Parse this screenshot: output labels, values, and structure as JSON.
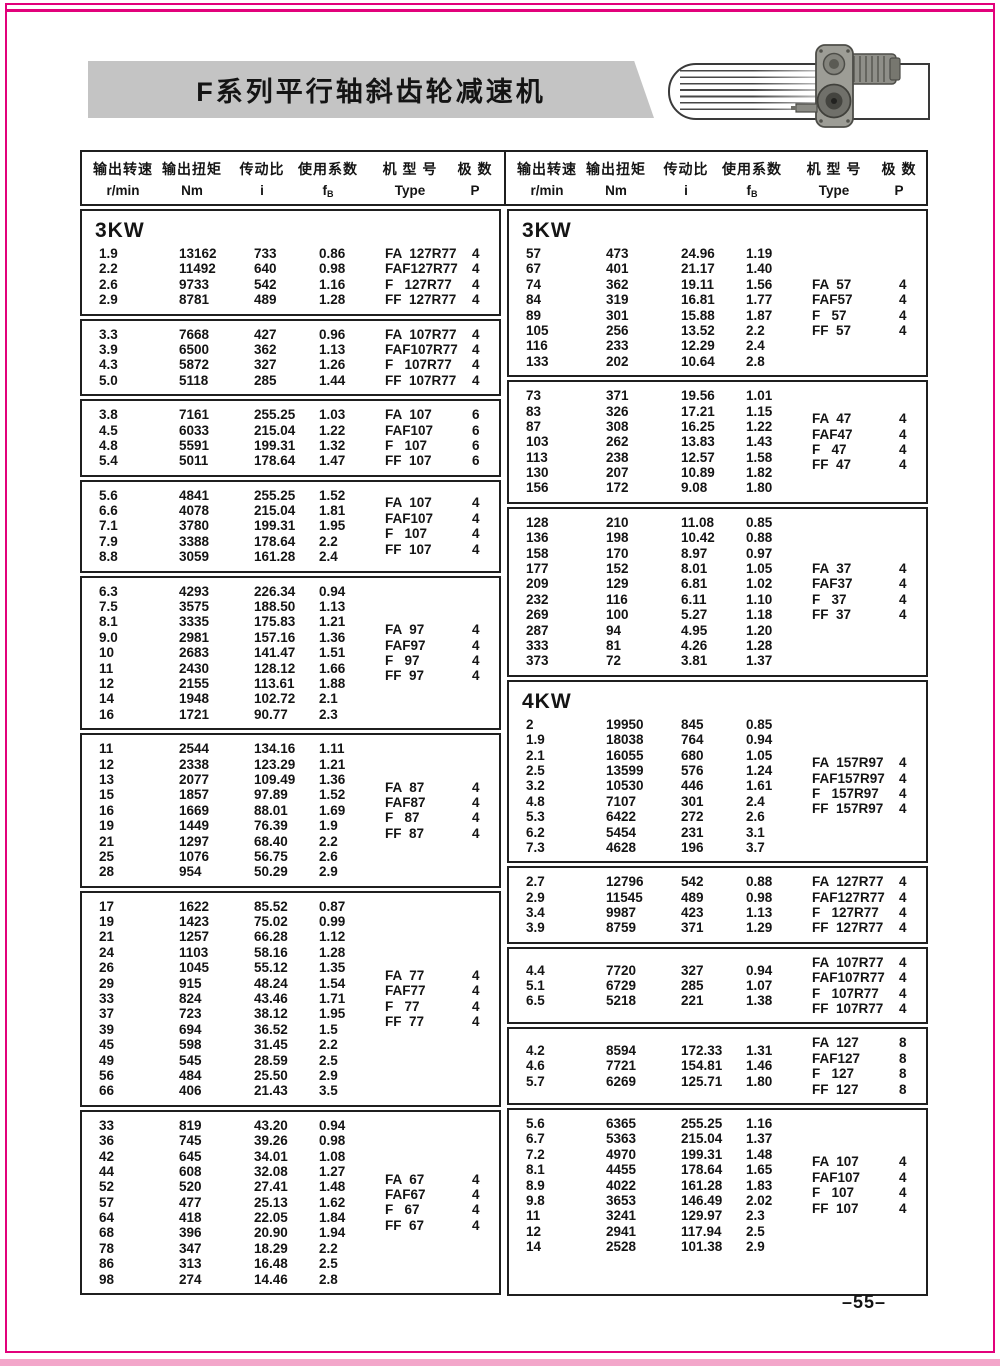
{
  "page": {
    "title": "F系列平行轴斜齿轮减速机",
    "page_number": "–55–"
  },
  "icons": {
    "header_photo": "gear-reducer-photo",
    "header_decoration": "speed-lines"
  },
  "header_cols": [
    {
      "cn": "输出转速",
      "unit": "r/min"
    },
    {
      "cn": "输出扭矩",
      "unit": "Nm"
    },
    {
      "cn": "传动比",
      "unit": "i"
    },
    {
      "cn": "使用系数",
      "unit": "fB"
    },
    {
      "cn": "机 型 号",
      "unit": "Type"
    },
    {
      "cn": "极  数",
      "unit": "P"
    }
  ],
  "tables": [
    {
      "blocks": [
        {
          "power": "3KW",
          "rows": [
            [
              "1.9",
              "13162",
              "733",
              "0.86"
            ],
            [
              "2.2",
              "11492",
              "640",
              "0.98"
            ],
            [
              "2.6",
              "9733",
              "542",
              "1.16"
            ],
            [
              "2.9",
              "8781",
              "489",
              "1.28"
            ]
          ],
          "types": [
            [
              "FA  127R77",
              "4"
            ],
            [
              "FAF127R77",
              "4"
            ],
            [
              "F   127R77",
              "4"
            ],
            [
              "FF  127R77",
              "4"
            ]
          ]
        },
        {
          "rows": [
            [
              "3.3",
              "7668",
              "427",
              "0.96"
            ],
            [
              "3.9",
              "6500",
              "362",
              "1.13"
            ],
            [
              "4.3",
              "5872",
              "327",
              "1.26"
            ],
            [
              "5.0",
              "5118",
              "285",
              "1.44"
            ]
          ],
          "types": [
            [
              "FA  107R77",
              "4"
            ],
            [
              "FAF107R77",
              "4"
            ],
            [
              "F   107R77",
              "4"
            ],
            [
              "FF  107R77",
              "4"
            ]
          ]
        },
        {
          "rows": [
            [
              "3.8",
              "7161",
              "255.25",
              "1.03"
            ],
            [
              "4.5",
              "6033",
              "215.04",
              "1.22"
            ],
            [
              "4.8",
              "5591",
              "199.31",
              "1.32"
            ],
            [
              "5.4",
              "5011",
              "178.64",
              "1.47"
            ]
          ],
          "types": [
            [
              "FA  107",
              "6"
            ],
            [
              "FAF107",
              "6"
            ],
            [
              "F   107",
              "6"
            ],
            [
              "FF  107",
              "6"
            ]
          ]
        },
        {
          "rows": [
            [
              "5.6",
              "4841",
              "255.25",
              "1.52"
            ],
            [
              "6.6",
              "4078",
              "215.04",
              "1.81"
            ],
            [
              "7.1",
              "3780",
              "199.31",
              "1.95"
            ],
            [
              "7.9",
              "3388",
              "178.64",
              "2.2"
            ],
            [
              "8.8",
              "3059",
              "161.28",
              "2.4"
            ]
          ],
          "types": [
            [
              "FA  107",
              "4"
            ],
            [
              "FAF107",
              "4"
            ],
            [
              "F   107",
              "4"
            ],
            [
              "FF  107",
              "4"
            ]
          ]
        },
        {
          "rows": [
            [
              "6.3",
              "4293",
              "226.34",
              "0.94"
            ],
            [
              "7.5",
              "3575",
              "188.50",
              "1.13"
            ],
            [
              "8.1",
              "3335",
              "175.83",
              "1.21"
            ],
            [
              "9.0",
              "2981",
              "157.16",
              "1.36"
            ],
            [
              "10",
              "2683",
              "141.47",
              "1.51"
            ],
            [
              "11",
              "2430",
              "128.12",
              "1.66"
            ],
            [
              "12",
              "2155",
              "113.61",
              "1.88"
            ],
            [
              "14",
              "1948",
              "102.72",
              "2.1"
            ],
            [
              "16",
              "1721",
              "90.77",
              "2.3"
            ]
          ],
          "types": [
            [
              "FA  97",
              "4"
            ],
            [
              "FAF97",
              "4"
            ],
            [
              "F   97",
              "4"
            ],
            [
              "FF  97",
              "4"
            ]
          ]
        },
        {
          "rows": [
            [
              "11",
              "2544",
              "134.16",
              "1.11"
            ],
            [
              "12",
              "2338",
              "123.29",
              "1.21"
            ],
            [
              "13",
              "2077",
              "109.49",
              "1.36"
            ],
            [
              "15",
              "1857",
              "97.89",
              "1.52"
            ],
            [
              "16",
              "1669",
              "88.01",
              "1.69"
            ],
            [
              "19",
              "1449",
              "76.39",
              "1.9"
            ],
            [
              "21",
              "1297",
              "68.40",
              "2.2"
            ],
            [
              "25",
              "1076",
              "56.75",
              "2.6"
            ],
            [
              "28",
              "954",
              "50.29",
              "2.9"
            ]
          ],
          "types": [
            [
              "FA  87",
              "4"
            ],
            [
              "FAF87",
              "4"
            ],
            [
              "F   87",
              "4"
            ],
            [
              "FF  87",
              "4"
            ]
          ]
        },
        {
          "rows": [
            [
              "17",
              "1622",
              "85.52",
              "0.87"
            ],
            [
              "19",
              "1423",
              "75.02",
              "0.99"
            ],
            [
              "21",
              "1257",
              "66.28",
              "1.12"
            ],
            [
              "24",
              "1103",
              "58.16",
              "1.28"
            ],
            [
              "26",
              "1045",
              "55.12",
              "1.35"
            ],
            [
              "29",
              "915",
              "48.24",
              "1.54"
            ],
            [
              "33",
              "824",
              "43.46",
              "1.71"
            ],
            [
              "37",
              "723",
              "38.12",
              "1.95"
            ],
            [
              "39",
              "694",
              "36.52",
              "1.5"
            ],
            [
              "45",
              "598",
              "31.45",
              "2.2"
            ],
            [
              "49",
              "545",
              "28.59",
              "2.5"
            ],
            [
              "56",
              "484",
              "25.50",
              "2.9"
            ],
            [
              "66",
              "406",
              "21.43",
              "3.5"
            ]
          ],
          "types": [
            [
              "FA  77",
              "4"
            ],
            [
              "FAF77",
              "4"
            ],
            [
              "F   77",
              "4"
            ],
            [
              "FF  77",
              "4"
            ]
          ]
        },
        {
          "rows": [
            [
              "33",
              "819",
              "43.20",
              "0.94"
            ],
            [
              "36",
              "745",
              "39.26",
              "0.98"
            ],
            [
              "42",
              "645",
              "34.01",
              "1.08"
            ],
            [
              "44",
              "608",
              "32.08",
              "1.27"
            ],
            [
              "52",
              "520",
              "27.41",
              "1.48"
            ],
            [
              "57",
              "477",
              "25.13",
              "1.62"
            ],
            [
              "64",
              "418",
              "22.05",
              "1.84"
            ],
            [
              "68",
              "396",
              "20.90",
              "1.94"
            ],
            [
              "78",
              "347",
              "18.29",
              "2.2"
            ],
            [
              "86",
              "313",
              "16.48",
              "2.5"
            ],
            [
              "98",
              "274",
              "14.46",
              "2.8"
            ]
          ],
          "types": [
            [
              "FA  67",
              "4"
            ],
            [
              "FAF67",
              "4"
            ],
            [
              "F   67",
              "4"
            ],
            [
              "FF  67",
              "4"
            ]
          ]
        }
      ]
    },
    {
      "blocks": [
        {
          "power": "3KW",
          "rows": [
            [
              "57",
              "473",
              "24.96",
              "1.19"
            ],
            [
              "67",
              "401",
              "21.17",
              "1.40"
            ],
            [
              "74",
              "362",
              "19.11",
              "1.56"
            ],
            [
              "84",
              "319",
              "16.81",
              "1.77"
            ],
            [
              "89",
              "301",
              "15.88",
              "1.87"
            ],
            [
              "105",
              "256",
              "13.52",
              "2.2"
            ],
            [
              "116",
              "233",
              "12.29",
              "2.4"
            ],
            [
              "133",
              "202",
              "10.64",
              "2.8"
            ]
          ],
          "types": [
            [
              "FA  57",
              "4"
            ],
            [
              "FAF57",
              "4"
            ],
            [
              "F   57",
              "4"
            ],
            [
              "FF  57",
              "4"
            ]
          ]
        },
        {
          "rows": [
            [
              "73",
              "371",
              "19.56",
              "1.01"
            ],
            [
              "83",
              "326",
              "17.21",
              "1.15"
            ],
            [
              "87",
              "308",
              "16.25",
              "1.22"
            ],
            [
              "103",
              "262",
              "13.83",
              "1.43"
            ],
            [
              "113",
              "238",
              "12.57",
              "1.58"
            ],
            [
              "130",
              "207",
              "10.89",
              "1.82"
            ],
            [
              "156",
              "172",
              "9.08",
              "1.80"
            ]
          ],
          "types": [
            [
              "FA  47",
              "4"
            ],
            [
              "FAF47",
              "4"
            ],
            [
              "F   47",
              "4"
            ],
            [
              "FF  47",
              "4"
            ]
          ]
        },
        {
          "rows": [
            [
              "128",
              "210",
              "11.08",
              "0.85"
            ],
            [
              "136",
              "198",
              "10.42",
              "0.88"
            ],
            [
              "158",
              "170",
              "8.97",
              "0.97"
            ],
            [
              "177",
              "152",
              "8.01",
              "1.05"
            ],
            [
              "209",
              "129",
              "6.81",
              "1.02"
            ],
            [
              "232",
              "116",
              "6.11",
              "1.10"
            ],
            [
              "269",
              "100",
              "5.27",
              "1.18"
            ],
            [
              "287",
              "94",
              "4.95",
              "1.20"
            ],
            [
              "333",
              "81",
              "4.26",
              "1.28"
            ],
            [
              "373",
              "72",
              "3.81",
              "1.37"
            ]
          ],
          "types": [
            [
              "FA  37",
              "4"
            ],
            [
              "FAF37",
              "4"
            ],
            [
              "F   37",
              "4"
            ],
            [
              "FF  37",
              "4"
            ]
          ]
        },
        {
          "power": "4KW",
          "rows": [
            [
              "2",
              "19950",
              "845",
              "0.85"
            ],
            [
              "1.9",
              "18038",
              "764",
              "0.94"
            ],
            [
              "2.1",
              "16055",
              "680",
              "1.05"
            ],
            [
              "2.5",
              "13599",
              "576",
              "1.24"
            ],
            [
              "3.2",
              "10530",
              "446",
              "1.61"
            ],
            [
              "4.8",
              "7107",
              "301",
              "2.4"
            ],
            [
              "5.3",
              "6422",
              "272",
              "2.6"
            ],
            [
              "6.2",
              "5454",
              "231",
              "3.1"
            ],
            [
              "7.3",
              "4628",
              "196",
              "3.7"
            ]
          ],
          "types": [
            [
              "FA  157R97",
              "4"
            ],
            [
              "FAF157R97",
              "4"
            ],
            [
              "F   157R97",
              "4"
            ],
            [
              "FF  157R97",
              "4"
            ]
          ]
        },
        {
          "rows": [
            [
              "2.7",
              "12796",
              "542",
              "0.88"
            ],
            [
              "2.9",
              "11545",
              "489",
              "0.98"
            ],
            [
              "3.4",
              "9987",
              "423",
              "1.13"
            ],
            [
              "3.9",
              "8759",
              "371",
              "1.29"
            ]
          ],
          "types": [
            [
              "FA  127R77",
              "4"
            ],
            [
              "FAF127R77",
              "4"
            ],
            [
              "F   127R77",
              "4"
            ],
            [
              "FF  127R77",
              "4"
            ]
          ]
        },
        {
          "rows": [
            [
              "4.4",
              "7720",
              "327",
              "0.94"
            ],
            [
              "5.1",
              "6729",
              "285",
              "1.07"
            ],
            [
              "6.5",
              "5218",
              "221",
              "1.38"
            ]
          ],
          "types": [
            [
              "FA  107R77",
              "4"
            ],
            [
              "FAF107R77",
              "4"
            ],
            [
              "F   107R77",
              "4"
            ],
            [
              "FF  107R77",
              "4"
            ]
          ]
        },
        {
          "rows": [
            [
              "4.2",
              "8594",
              "172.33",
              "1.31"
            ],
            [
              "4.6",
              "7721",
              "154.81",
              "1.46"
            ],
            [
              "5.7",
              "6269",
              "125.71",
              "1.80"
            ]
          ],
          "types": [
            [
              "FA  127",
              "8"
            ],
            [
              "FAF127",
              "8"
            ],
            [
              "F   127",
              "8"
            ],
            [
              "FF  127",
              "8"
            ]
          ]
        },
        {
          "rows": [
            [
              "5.6",
              "6365",
              "255.25",
              "1.16"
            ],
            [
              "6.7",
              "5363",
              "215.04",
              "1.37"
            ],
            [
              "7.2",
              "4970",
              "199.31",
              "1.48"
            ],
            [
              "8.1",
              "4455",
              "178.64",
              "1.65"
            ],
            [
              "8.9",
              "4022",
              "161.28",
              "1.83"
            ],
            [
              "9.8",
              "3653",
              "146.49",
              "2.02"
            ],
            [
              "11",
              "3241",
              "129.97",
              "2.3"
            ],
            [
              "12",
              "2941",
              "117.94",
              "2.5"
            ],
            [
              "14",
              "2528",
              "101.38",
              "2.9"
            ]
          ],
          "types": [
            [
              "FA  107",
              "4"
            ],
            [
              "FAF107",
              "4"
            ],
            [
              "F   107",
              "4"
            ],
            [
              "FF  107",
              "4"
            ]
          ]
        }
      ]
    }
  ]
}
